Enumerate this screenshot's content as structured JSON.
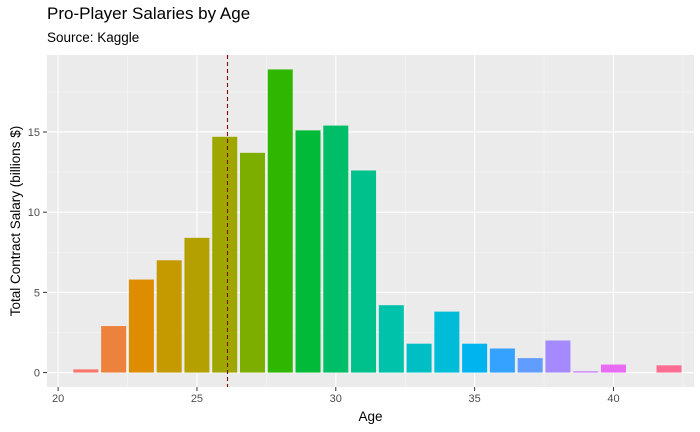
{
  "chart_data": {
    "type": "bar",
    "title": "Pro-Player Salaries by Age",
    "subtitle": "Source: Kaggle",
    "xlabel": "Age",
    "ylabel": "Total Contract Salary (billions $)",
    "x": [
      21,
      22,
      23,
      24,
      25,
      26,
      27,
      28,
      29,
      30,
      31,
      32,
      33,
      34,
      35,
      36,
      37,
      38,
      39,
      40,
      42
    ],
    "values": [
      0.2,
      2.9,
      5.8,
      7.0,
      8.4,
      14.7,
      13.7,
      18.9,
      15.1,
      15.4,
      12.6,
      4.2,
      1.8,
      3.8,
      1.8,
      1.5,
      0.9,
      2.0,
      0.08,
      0.5,
      0.45
    ],
    "xlim": [
      19.6,
      42.9
    ],
    "ylim": [
      -0.9,
      19.8
    ],
    "xticks": [
      20,
      25,
      30,
      35,
      40
    ],
    "yticks": [
      0,
      5,
      10,
      15
    ],
    "reference_line": {
      "x": 26.1,
      "style": "dashed",
      "color": "#8B0000"
    },
    "colors": [
      "#F8766D",
      "#EC823C",
      "#DE8C00",
      "#C59900",
      "#B4A000",
      "#9DA700",
      "#7CAE00",
      "#2FB600",
      "#00BA38",
      "#00BE67",
      "#00C08B",
      "#00C1AA",
      "#00BFC4",
      "#00BCD8",
      "#00B4F0",
      "#35A2FF",
      "#619CFF",
      "#A58AFF",
      "#C77CFF",
      "#E76BF3",
      "#FF6C91"
    ],
    "grid": true,
    "legend": "none"
  }
}
